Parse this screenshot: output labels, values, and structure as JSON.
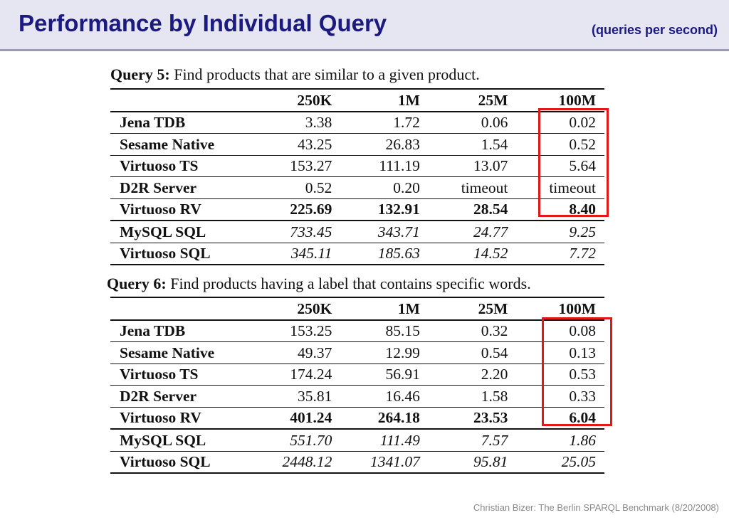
{
  "header": {
    "title": "Performance by Individual Query",
    "subtitle": "(queries per second)"
  },
  "columns": [
    "",
    "250K",
    "1M",
    "25M",
    "100M"
  ],
  "query5": {
    "label": "Query 5:",
    "description": "Find products that are similar to a given product.",
    "rows": [
      {
        "name": "Jena TDB",
        "values": [
          "3.38",
          "1.72",
          "0.06",
          "0.02"
        ]
      },
      {
        "name": "Sesame Native",
        "values": [
          "43.25",
          "26.83",
          "1.54",
          "0.52"
        ]
      },
      {
        "name": "Virtuoso TS",
        "values": [
          "153.27",
          "111.19",
          "13.07",
          "5.64"
        ]
      },
      {
        "name": "D2R Server",
        "values": [
          "0.52",
          "0.20",
          "timeout",
          "timeout"
        ]
      },
      {
        "name": "Virtuoso RV",
        "values": [
          "225.69",
          "132.91",
          "28.54",
          "8.40"
        ]
      },
      {
        "name": "MySQL SQL",
        "values": [
          "733.45",
          "343.71",
          "24.77",
          "9.25"
        ]
      },
      {
        "name": "Virtuoso SQL",
        "values": [
          "345.11",
          "185.63",
          "14.52",
          "7.72"
        ]
      }
    ]
  },
  "query6": {
    "label": "Query 6:",
    "description": "Find products having a label that contains specific words.",
    "rows": [
      {
        "name": "Jena TDB",
        "values": [
          "153.25",
          "85.15",
          "0.32",
          "0.08"
        ]
      },
      {
        "name": "Sesame Native",
        "values": [
          "49.37",
          "12.99",
          "0.54",
          "0.13"
        ]
      },
      {
        "name": "Virtuoso TS",
        "values": [
          "174.24",
          "56.91",
          "2.20",
          "0.53"
        ]
      },
      {
        "name": "D2R Server",
        "values": [
          "35.81",
          "16.46",
          "1.58",
          "0.33"
        ]
      },
      {
        "name": "Virtuoso RV",
        "values": [
          "401.24",
          "264.18",
          "23.53",
          "6.04"
        ]
      },
      {
        "name": "MySQL SQL",
        "values": [
          "551.70",
          "111.49",
          "7.57",
          "1.86"
        ]
      },
      {
        "name": "Virtuoso SQL",
        "values": [
          "2448.12",
          "1341.07",
          "95.81",
          "25.05"
        ]
      }
    ]
  },
  "highlight_color": "#e21818",
  "footer": "Christian Bizer: The Berlin SPARQL Benchmark (8/20/2008)"
}
